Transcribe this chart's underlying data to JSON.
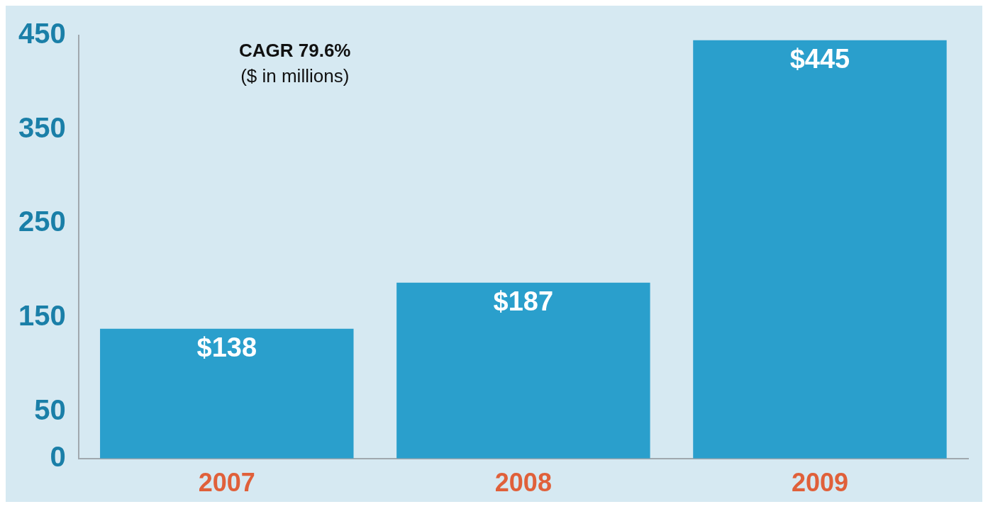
{
  "chart_data": {
    "type": "bar",
    "categories": [
      "2007",
      "2008",
      "2009"
    ],
    "values": [
      138,
      187,
      445
    ],
    "value_labels": [
      "$138",
      "$187",
      "$445"
    ],
    "color": "#2a9fcc",
    "ylim": [
      0,
      450
    ],
    "yticks": [
      0,
      50,
      150,
      250,
      350,
      450
    ],
    "grid": false,
    "legend": false,
    "annotations": [
      "CAGR 79.6%",
      "($ in millions)"
    ]
  }
}
